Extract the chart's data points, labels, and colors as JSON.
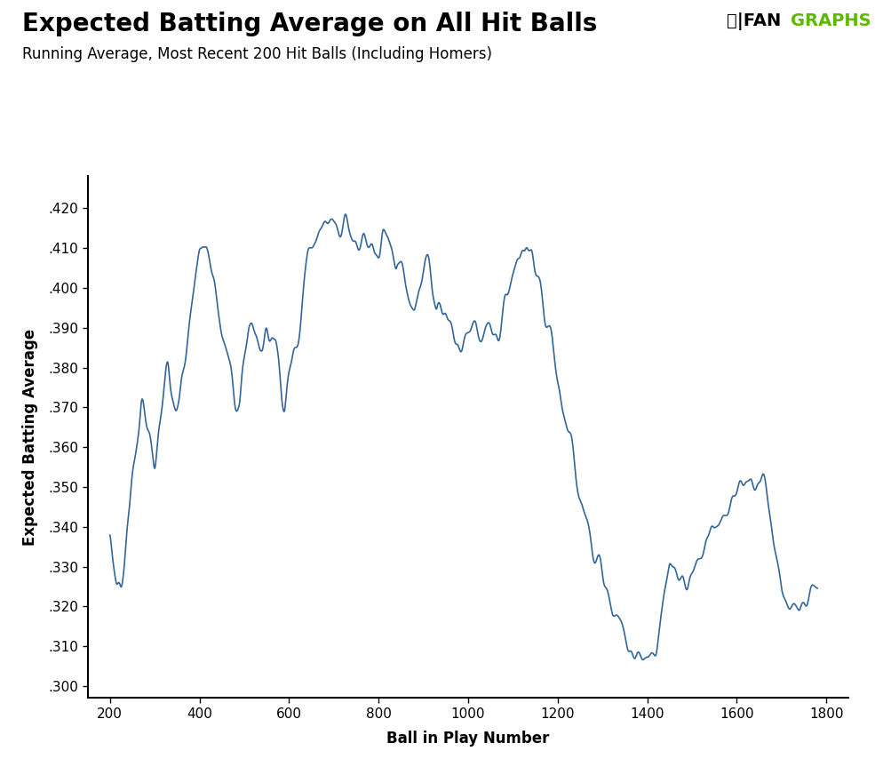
{
  "title": "Expected Batting Average on All Hit Balls",
  "subtitle": "Running Average, Most Recent 200 Hit Balls (Including Homers)",
  "xlabel": "Ball in Play Number",
  "ylabel": "Expected Batting Average",
  "line_color": "#336699",
  "line_width": 1.2,
  "bg_color": "#FFFFFF",
  "xlim": [
    150,
    1850
  ],
  "ylim": [
    0.297,
    0.428
  ],
  "xticks": [
    200,
    400,
    600,
    800,
    1000,
    1200,
    1400,
    1600,
    1800
  ],
  "yticks": [
    0.3,
    0.31,
    0.32,
    0.33,
    0.34,
    0.35,
    0.36,
    0.37,
    0.38,
    0.39,
    0.4,
    0.41,
    0.42
  ],
  "fangraphs_green": "#5CB800",
  "title_fontsize": 20,
  "subtitle_fontsize": 12,
  "axis_label_fontsize": 12,
  "tick_fontsize": 11
}
